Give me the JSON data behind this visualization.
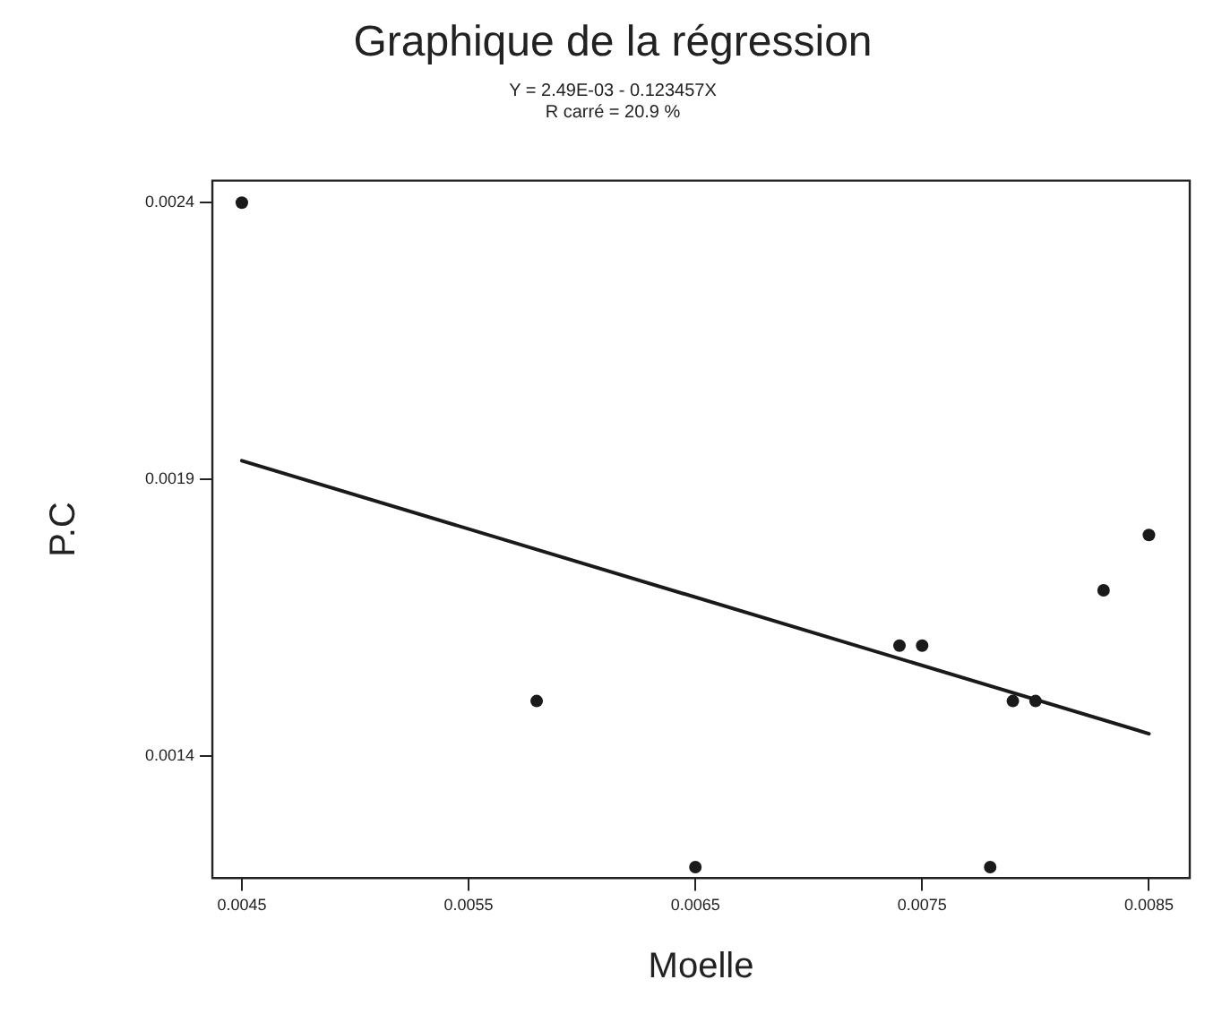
{
  "chart_data": {
    "type": "scatter",
    "title": "Graphique de la régression",
    "subtitle": "Y = 2.49E-03 - 0.123457X",
    "annotations": [
      "R carré = 20.9 %"
    ],
    "xlabel": "Moelle",
    "ylabel": "P.C",
    "xlim": [
      0.00437,
      0.00868
    ],
    "xticks": [
      0.0045,
      0.0055,
      0.0065,
      0.0075,
      0.0085
    ],
    "ylim": [
      0.00118,
      0.00244
    ],
    "yticks": [
      0.0014,
      0.0019,
      0.0024
    ],
    "grid": false,
    "legend": false,
    "marker": "circle",
    "series": [
      {
        "color": "#1a1a1a",
        "x": [
          0.0045,
          0.0058,
          0.0065,
          0.0074,
          0.0075,
          0.0078,
          0.0079,
          0.008,
          0.0083,
          0.0085
        ],
        "values": [
          0.0024,
          0.0015,
          0.0012,
          0.0016,
          0.0016,
          0.0012,
          0.0015,
          0.0015,
          0.0017,
          0.0018
        ]
      },
      {
        "type": "line",
        "color": "#1a1a1a",
        "marker": "none",
        "x": [
          0.0045,
          0.0085
        ],
        "values": [
          0.001934,
          0.001441
        ]
      }
    ]
  }
}
